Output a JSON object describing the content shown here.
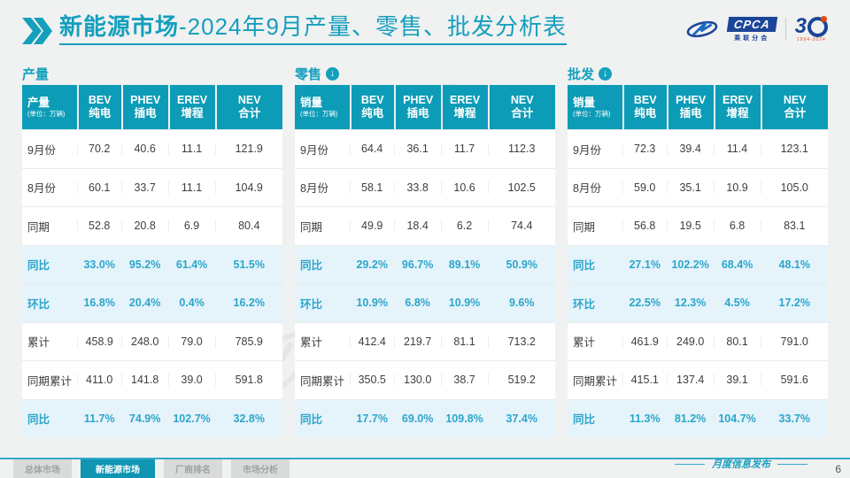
{
  "title": {
    "bold": "新能源市场",
    "rest": "-2024年9月产量、零售、批发分析表"
  },
  "logos": {
    "cpca_badge": "CPCA",
    "cpca_sub": "乘联分会",
    "anniversary_number": "3",
    "anniversary_sub": "1994-2024"
  },
  "tables": [
    {
      "section": "产量",
      "arrow": false,
      "first_col": {
        "title": "产量",
        "unit": "(单位：万辆)"
      },
      "columns": [
        {
          "l1": "BEV",
          "l2": "纯电"
        },
        {
          "l1": "PHEV",
          "l2": "插电"
        },
        {
          "l1": "EREV",
          "l2": "增程"
        },
        {
          "l1": "NEV",
          "l2": "合计"
        }
      ],
      "rows": [
        {
          "label": "9月份",
          "values": [
            "70.2",
            "40.6",
            "11.1",
            "121.9"
          ],
          "hl": false
        },
        {
          "label": "8月份",
          "values": [
            "60.1",
            "33.7",
            "11.1",
            "104.9"
          ],
          "hl": false
        },
        {
          "label": "同期",
          "values": [
            "52.8",
            "20.8",
            "6.9",
            "80.4"
          ],
          "hl": false
        },
        {
          "label": "同比",
          "values": [
            "33.0%",
            "95.2%",
            "61.4%",
            "51.5%"
          ],
          "hl": true
        },
        {
          "label": "环比",
          "values": [
            "16.8%",
            "20.4%",
            "0.4%",
            "16.2%"
          ],
          "hl": true
        },
        {
          "label": "累计",
          "values": [
            "458.9",
            "248.0",
            "79.0",
            "785.9"
          ],
          "hl": false
        },
        {
          "label": "同期累计",
          "values": [
            "411.0",
            "141.8",
            "39.0",
            "591.8"
          ],
          "hl": false
        },
        {
          "label": "同比",
          "values": [
            "11.7%",
            "74.9%",
            "102.7%",
            "32.8%"
          ],
          "hl": true
        }
      ]
    },
    {
      "section": "零售",
      "arrow": true,
      "first_col": {
        "title": "销量",
        "unit": "(单位：万辆)"
      },
      "columns": [
        {
          "l1": "BEV",
          "l2": "纯电"
        },
        {
          "l1": "PHEV",
          "l2": "插电"
        },
        {
          "l1": "EREV",
          "l2": "增程"
        },
        {
          "l1": "NEV",
          "l2": "合计"
        }
      ],
      "rows": [
        {
          "label": "9月份",
          "values": [
            "64.4",
            "36.1",
            "11.7",
            "112.3"
          ],
          "hl": false
        },
        {
          "label": "8月份",
          "values": [
            "58.1",
            "33.8",
            "10.6",
            "102.5"
          ],
          "hl": false
        },
        {
          "label": "同期",
          "values": [
            "49.9",
            "18.4",
            "6.2",
            "74.4"
          ],
          "hl": false
        },
        {
          "label": "同比",
          "values": [
            "29.2%",
            "96.7%",
            "89.1%",
            "50.9%"
          ],
          "hl": true
        },
        {
          "label": "环比",
          "values": [
            "10.9%",
            "6.8%",
            "10.9%",
            "9.6%"
          ],
          "hl": true
        },
        {
          "label": "累计",
          "values": [
            "412.4",
            "219.7",
            "81.1",
            "713.2"
          ],
          "hl": false
        },
        {
          "label": "同期累计",
          "values": [
            "350.5",
            "130.0",
            "38.7",
            "519.2"
          ],
          "hl": false
        },
        {
          "label": "同比",
          "values": [
            "17.7%",
            "69.0%",
            "109.8%",
            "37.4%"
          ],
          "hl": true
        }
      ]
    },
    {
      "section": "批发",
      "arrow": true,
      "first_col": {
        "title": "销量",
        "unit": "(单位：万辆)"
      },
      "columns": [
        {
          "l1": "BEV",
          "l2": "纯电"
        },
        {
          "l1": "PHEV",
          "l2": "插电"
        },
        {
          "l1": "EREV",
          "l2": "增程"
        },
        {
          "l1": "NEV",
          "l2": "合计"
        }
      ],
      "rows": [
        {
          "label": "9月份",
          "values": [
            "72.3",
            "39.4",
            "11.4",
            "123.1"
          ],
          "hl": false
        },
        {
          "label": "8月份",
          "values": [
            "59.0",
            "35.1",
            "10.9",
            "105.0"
          ],
          "hl": false
        },
        {
          "label": "同期",
          "values": [
            "56.8",
            "19.5",
            "6.8",
            "83.1"
          ],
          "hl": false
        },
        {
          "label": "同比",
          "values": [
            "27.1%",
            "102.2%",
            "68.4%",
            "48.1%"
          ],
          "hl": true
        },
        {
          "label": "环比",
          "values": [
            "22.5%",
            "12.3%",
            "4.5%",
            "17.2%"
          ],
          "hl": true
        },
        {
          "label": "累计",
          "values": [
            "461.9",
            "249.0",
            "80.1",
            "791.0"
          ],
          "hl": false
        },
        {
          "label": "同期累计",
          "values": [
            "415.1",
            "137.4",
            "39.1",
            "591.6"
          ],
          "hl": false
        },
        {
          "label": "同比",
          "values": [
            "11.3%",
            "81.2%",
            "104.7%",
            "33.7%"
          ],
          "hl": true
        }
      ]
    }
  ],
  "footer": {
    "tabs": [
      {
        "label": "总体市场",
        "active": false
      },
      {
        "label": "新能源市场",
        "active": true
      },
      {
        "label": "厂商排名",
        "active": false
      },
      {
        "label": "市场分析",
        "active": false
      }
    ],
    "publish_label": "月度信息发布",
    "page_number": "6"
  },
  "icons": {
    "down_arrow": "↓"
  },
  "colors": {
    "accent_teal": "#0D9CB7",
    "title_teal": "#149FBD",
    "percent_text": "#2BA6CB",
    "highlight_row_bg": "#E5F3FA",
    "brand_blue": "#1B4598",
    "active_tab_bg": "#1095B3"
  }
}
